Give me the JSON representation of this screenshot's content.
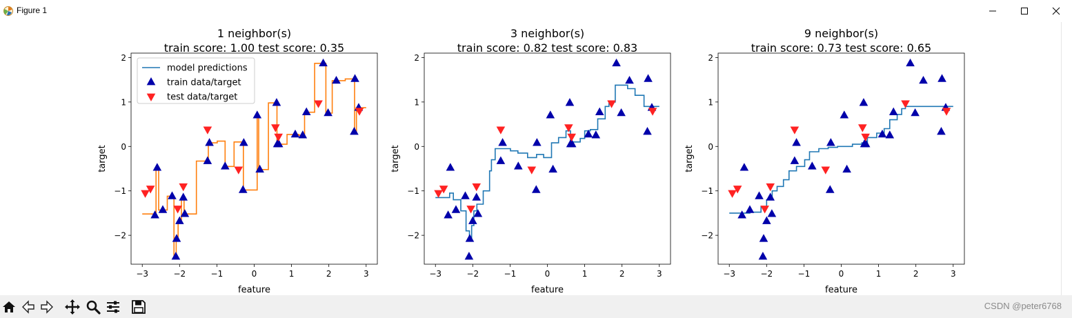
{
  "window": {
    "title": "Figure 1"
  },
  "toolbar": {
    "items": [
      "home-icon",
      "back-icon",
      "forward-icon",
      "pan-icon",
      "zoom-icon",
      "configure-subplots-icon",
      "save-icon"
    ],
    "watermark": "CSDN @peter6768"
  },
  "chart_data": [
    {
      "type": "line",
      "title": "1 neighbor(s)\ntrain score: 1.00 test score: 0.35",
      "title_lines": [
        "1 neighbor(s)",
        "train score: 1.00 test score: 0.35"
      ],
      "xlabel": "feature",
      "ylabel": "target",
      "xlim": [
        -3.3,
        3.3
      ],
      "ylim": [
        -2.65,
        2.1
      ],
      "xticks": [
        -3,
        -2,
        -1,
        0,
        1,
        2,
        3
      ],
      "yticks": [
        -2,
        -1,
        0,
        1,
        2
      ],
      "legend": {
        "placement": "upper-left",
        "entries": [
          "model predictions",
          "train data/target",
          "test data/target"
        ]
      },
      "prediction_color": "#ff7f0e",
      "train": {
        "x": [
          -2.66,
          -2.6,
          -2.45,
          -2.2,
          -2.1,
          -2.08,
          -2.0,
          -1.9,
          -1.86,
          -1.25,
          -1.2,
          -0.78,
          -0.3,
          -0.28,
          0.08,
          0.15,
          0.6,
          0.62,
          0.66,
          1.1,
          1.3,
          1.4,
          1.85,
          1.98,
          2.2,
          2.68,
          2.7,
          2.8
        ],
        "y": [
          -1.55,
          -0.48,
          -1.43,
          -1.12,
          -2.48,
          -2.08,
          -1.68,
          -1.15,
          -1.52,
          -0.33,
          0.08,
          -0.45,
          -0.98,
          0.08,
          0.7,
          -0.52,
          0.98,
          0.05,
          0.05,
          0.27,
          0.25,
          0.77,
          1.87,
          0.75,
          1.48,
          0.33,
          1.52,
          0.87
        ]
      },
      "test": {
        "x": [
          -2.92,
          -2.78,
          -2.05,
          -1.9,
          -1.25,
          -0.42,
          0.57,
          0.65,
          1.72,
          2.82
        ],
        "y": [
          -1.05,
          -0.95,
          -1.4,
          -0.9,
          0.38,
          -0.52,
          0.43,
          0.22,
          0.97,
          0.8
        ]
      },
      "prediction": [
        [
          -3,
          -1.52
        ],
        [
          -2.63,
          -1.52
        ],
        [
          -2.63,
          -0.48
        ],
        [
          -2.56,
          -0.48
        ],
        [
          -2.56,
          -1.43
        ],
        [
          -2.33,
          -1.43
        ],
        [
          -2.33,
          -1.12
        ],
        [
          -2.15,
          -1.12
        ],
        [
          -2.15,
          -2.48
        ],
        [
          -2.09,
          -2.48
        ],
        [
          -2.09,
          -2.08
        ],
        [
          -2.04,
          -2.08
        ],
        [
          -2.04,
          -1.68
        ],
        [
          -1.95,
          -1.68
        ],
        [
          -1.95,
          -1.15
        ],
        [
          -1.88,
          -1.15
        ],
        [
          -1.88,
          -1.52
        ],
        [
          -1.55,
          -1.52
        ],
        [
          -1.55,
          -0.33
        ],
        [
          -1.23,
          -0.33
        ],
        [
          -1.23,
          0.08
        ],
        [
          -0.99,
          0.08
        ],
        [
          -0.99,
          0.12
        ],
        [
          -0.78,
          0.12
        ],
        [
          -0.78,
          -0.45
        ],
        [
          -0.54,
          -0.45
        ],
        [
          -0.54,
          0.1
        ],
        [
          -0.29,
          0.1
        ],
        [
          -0.29,
          -0.98
        ],
        [
          -0.1,
          -0.98
        ],
        [
          -0.1,
          -0.98
        ],
        [
          0.08,
          -0.98
        ],
        [
          0.08,
          0.7
        ],
        [
          0.12,
          0.7
        ],
        [
          0.12,
          -0.52
        ],
        [
          0.38,
          -0.52
        ],
        [
          0.38,
          0.98
        ],
        [
          0.61,
          0.98
        ],
        [
          0.61,
          0.05
        ],
        [
          0.88,
          0.05
        ],
        [
          0.88,
          0.27
        ],
        [
          1.2,
          0.27
        ],
        [
          1.2,
          0.25
        ],
        [
          1.35,
          0.25
        ],
        [
          1.35,
          0.77
        ],
        [
          1.62,
          0.77
        ],
        [
          1.62,
          1.87
        ],
        [
          1.92,
          1.87
        ],
        [
          1.92,
          0.75
        ],
        [
          2.09,
          0.75
        ],
        [
          2.09,
          1.48
        ],
        [
          2.44,
          1.48
        ],
        [
          2.44,
          1.52
        ],
        [
          2.69,
          1.52
        ],
        [
          2.69,
          0.33
        ],
        [
          2.74,
          0.33
        ],
        [
          2.74,
          0.87
        ],
        [
          3,
          0.87
        ]
      ]
    },
    {
      "type": "line",
      "title": "3 neighbor(s)\ntrain score: 0.82 test score: 0.83",
      "title_lines": [
        "3 neighbor(s)",
        "train score: 0.82 test score: 0.83"
      ],
      "xlabel": "feature",
      "ylabel": "target",
      "xlim": [
        -3.3,
        3.3
      ],
      "ylim": [
        -2.65,
        2.1
      ],
      "xticks": [
        -3,
        -2,
        -1,
        0,
        1,
        2,
        3
      ],
      "yticks": [
        -2,
        -1,
        0,
        1,
        2
      ],
      "prediction_color": "#1f77b4",
      "train": {
        "x": [
          -2.66,
          -2.6,
          -2.45,
          -2.2,
          -2.1,
          -2.08,
          -2.0,
          -1.9,
          -1.86,
          -1.25,
          -1.2,
          -0.78,
          -0.3,
          -0.28,
          0.08,
          0.15,
          0.6,
          0.62,
          0.66,
          1.1,
          1.3,
          1.4,
          1.85,
          1.98,
          2.2,
          2.68,
          2.7,
          2.8
        ],
        "y": [
          -1.55,
          -0.48,
          -1.43,
          -1.12,
          -2.48,
          -2.08,
          -1.68,
          -1.15,
          -1.52,
          -0.33,
          0.08,
          -0.45,
          -0.98,
          0.08,
          0.7,
          -0.52,
          0.98,
          0.05,
          0.05,
          0.27,
          0.25,
          0.77,
          1.87,
          0.75,
          1.48,
          0.33,
          1.52,
          0.87
        ]
      },
      "test": {
        "x": [
          -2.92,
          -2.78,
          -2.05,
          -1.9,
          -1.25,
          -0.42,
          0.57,
          0.65,
          1.72,
          2.82
        ],
        "y": [
          -1.05,
          -0.95,
          -1.4,
          -0.9,
          0.38,
          -0.52,
          0.43,
          0.22,
          0.97,
          0.8
        ]
      },
      "prediction": [
        [
          -3,
          -1.15
        ],
        [
          -2.62,
          -1.15
        ],
        [
          -2.62,
          -1.05
        ],
        [
          -2.52,
          -1.05
        ],
        [
          -2.52,
          -1.2
        ],
        [
          -2.32,
          -1.2
        ],
        [
          -2.32,
          -1.45
        ],
        [
          -2.18,
          -1.45
        ],
        [
          -2.18,
          -1.9
        ],
        [
          -2.09,
          -1.9
        ],
        [
          -2.09,
          -2.07
        ],
        [
          -2.03,
          -2.07
        ],
        [
          -2.03,
          -1.78
        ],
        [
          -1.97,
          -1.78
        ],
        [
          -1.97,
          -1.45
        ],
        [
          -1.89,
          -1.45
        ],
        [
          -1.89,
          -1.3
        ],
        [
          -1.72,
          -1.3
        ],
        [
          -1.72,
          -1.0
        ],
        [
          -1.55,
          -1.0
        ],
        [
          -1.55,
          -0.55
        ],
        [
          -1.5,
          -0.55
        ],
        [
          -1.5,
          -0.3
        ],
        [
          -1.4,
          -0.3
        ],
        [
          -1.4,
          -0.05
        ],
        [
          -0.99,
          -0.05
        ],
        [
          -0.99,
          -0.1
        ],
        [
          -0.79,
          -0.1
        ],
        [
          -0.79,
          -0.15
        ],
        [
          -0.53,
          -0.15
        ],
        [
          -0.53,
          -0.25
        ],
        [
          -0.29,
          -0.25
        ],
        [
          -0.29,
          -0.18
        ],
        [
          -0.1,
          -0.18
        ],
        [
          -0.1,
          -0.25
        ],
        [
          0.11,
          -0.25
        ],
        [
          0.11,
          0.08
        ],
        [
          0.3,
          0.08
        ],
        [
          0.3,
          0.2
        ],
        [
          0.5,
          0.2
        ],
        [
          0.5,
          0.35
        ],
        [
          0.62,
          0.35
        ],
        [
          0.62,
          0.1
        ],
        [
          0.88,
          0.1
        ],
        [
          0.88,
          0.18
        ],
        [
          1.0,
          0.18
        ],
        [
          1.0,
          0.35
        ],
        [
          1.15,
          0.35
        ],
        [
          1.15,
          0.38
        ],
        [
          1.35,
          0.38
        ],
        [
          1.35,
          0.62
        ],
        [
          1.55,
          0.62
        ],
        [
          1.55,
          0.9
        ],
        [
          1.65,
          0.9
        ],
        [
          1.65,
          1.0
        ],
        [
          1.82,
          1.0
        ],
        [
          1.82,
          1.38
        ],
        [
          2.15,
          1.38
        ],
        [
          2.15,
          1.3
        ],
        [
          2.35,
          1.3
        ],
        [
          2.35,
          1.15
        ],
        [
          2.59,
          1.15
        ],
        [
          2.59,
          0.9
        ],
        [
          3,
          0.9
        ]
      ]
    },
    {
      "type": "line",
      "title": "9 neighbor(s)\ntrain score: 0.73 test score: 0.65",
      "title_lines": [
        "9 neighbor(s)",
        "train score: 0.73 test score: 0.65"
      ],
      "xlabel": "feature",
      "ylabel": "target",
      "xlim": [
        -3.3,
        3.3
      ],
      "ylim": [
        -2.65,
        2.1
      ],
      "xticks": [
        -3,
        -2,
        -1,
        0,
        1,
        2,
        3
      ],
      "yticks": [
        -2,
        -1,
        0,
        1,
        2
      ],
      "prediction_color": "#1f77b4",
      "train": {
        "x": [
          -2.66,
          -2.6,
          -2.45,
          -2.2,
          -2.1,
          -2.08,
          -2.0,
          -1.9,
          -1.86,
          -1.25,
          -1.2,
          -0.78,
          -0.3,
          -0.28,
          0.08,
          0.15,
          0.6,
          0.62,
          0.66,
          1.1,
          1.3,
          1.4,
          1.85,
          1.98,
          2.2,
          2.68,
          2.7,
          2.8
        ],
        "y": [
          -1.55,
          -0.48,
          -1.43,
          -1.12,
          -2.48,
          -2.08,
          -1.68,
          -1.15,
          -1.52,
          -0.33,
          0.08,
          -0.45,
          -0.98,
          0.08,
          0.7,
          -0.52,
          0.98,
          0.05,
          0.05,
          0.27,
          0.25,
          0.77,
          1.87,
          0.75,
          1.48,
          0.33,
          1.52,
          0.87
        ]
      },
      "test": {
        "x": [
          -2.92,
          -2.78,
          -2.05,
          -1.9,
          -1.25,
          -0.42,
          0.57,
          0.65,
          1.72,
          2.82
        ],
        "y": [
          -1.05,
          -0.95,
          -1.4,
          -0.9,
          0.38,
          -0.52,
          0.43,
          0.22,
          0.97,
          0.8
        ]
      },
      "prediction": [
        [
          -3,
          -1.5
        ],
        [
          -2.45,
          -1.5
        ],
        [
          -2.45,
          -1.48
        ],
        [
          -2.15,
          -1.48
        ],
        [
          -2.15,
          -1.35
        ],
        [
          -2.0,
          -1.35
        ],
        [
          -2.0,
          -1.2
        ],
        [
          -1.85,
          -1.2
        ],
        [
          -1.85,
          -1.0
        ],
        [
          -1.72,
          -1.0
        ],
        [
          -1.72,
          -0.9
        ],
        [
          -1.55,
          -0.9
        ],
        [
          -1.55,
          -0.75
        ],
        [
          -1.4,
          -0.75
        ],
        [
          -1.4,
          -0.55
        ],
        [
          -1.2,
          -0.55
        ],
        [
          -1.2,
          -0.45
        ],
        [
          -0.98,
          -0.45
        ],
        [
          -0.98,
          -0.3
        ],
        [
          -0.85,
          -0.3
        ],
        [
          -0.85,
          -0.12
        ],
        [
          -0.6,
          -0.12
        ],
        [
          -0.6,
          -0.05
        ],
        [
          -0.35,
          -0.05
        ],
        [
          -0.35,
          -0.02
        ],
        [
          -0.1,
          -0.02
        ],
        [
          -0.1,
          0.0
        ],
        [
          0.3,
          0.0
        ],
        [
          0.3,
          0.05
        ],
        [
          0.55,
          0.05
        ],
        [
          0.55,
          0.08
        ],
        [
          0.7,
          0.08
        ],
        [
          0.7,
          0.2
        ],
        [
          0.95,
          0.2
        ],
        [
          0.95,
          0.3
        ],
        [
          1.15,
          0.3
        ],
        [
          1.15,
          0.4
        ],
        [
          1.3,
          0.4
        ],
        [
          1.3,
          0.6
        ],
        [
          1.5,
          0.6
        ],
        [
          1.5,
          0.72
        ],
        [
          1.62,
          0.72
        ],
        [
          1.62,
          0.85
        ],
        [
          1.72,
          0.85
        ],
        [
          1.72,
          0.9
        ],
        [
          3,
          0.9
        ]
      ]
    }
  ]
}
